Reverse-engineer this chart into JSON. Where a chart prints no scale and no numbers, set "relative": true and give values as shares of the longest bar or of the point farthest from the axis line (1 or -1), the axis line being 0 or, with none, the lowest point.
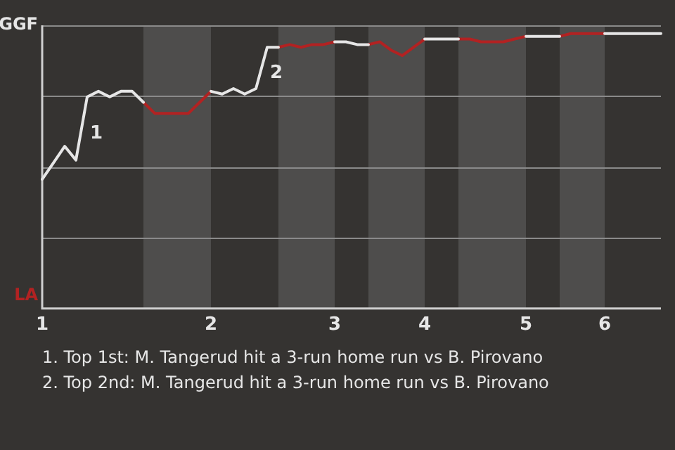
{
  "chart_data": {
    "type": "line",
    "relative": true,
    "categories": [
      "1",
      null,
      null,
      null,
      null,
      null,
      null,
      null,
      null,
      null,
      null,
      null,
      null,
      null,
      null,
      "2",
      null,
      null,
      null,
      null,
      null,
      null,
      null,
      null,
      null,
      null,
      "3",
      null,
      null,
      null,
      null,
      null,
      null,
      null,
      "4",
      null,
      null,
      null,
      null,
      null,
      null,
      null,
      null,
      "5",
      null,
      null,
      null,
      null,
      null,
      null,
      "6",
      null,
      null,
      null,
      null,
      null
    ],
    "grid": "y",
    "legend": false,
    "marker": "none",
    "line_style": "solid",
    "series": [
      {
        "color": "#e6e6e6",
        "values": [
          0.47,
          0.53,
          0.59,
          0.54,
          0.77,
          0.79,
          0.77,
          0.79,
          0.79,
          0.75,
          null,
          null,
          null,
          null,
          null,
          0.79,
          0.78,
          0.8,
          0.78,
          0.8,
          0.95,
          0.95,
          null,
          null,
          null,
          null,
          0.97,
          0.97,
          0.96,
          0.96,
          null,
          null,
          null,
          null,
          0.98,
          0.98,
          0.98,
          0.98,
          null,
          null,
          null,
          null,
          null,
          0.99,
          0.99,
          0.99,
          0.99,
          null,
          null,
          null,
          1,
          1,
          1,
          1,
          1,
          1
        ]
      },
      {
        "color": "#b22222",
        "values": [
          null,
          null,
          null,
          null,
          null,
          null,
          null,
          null,
          null,
          0.75,
          0.71,
          0.71,
          0.71,
          0.71,
          0.75,
          0.79,
          null,
          null,
          null,
          null,
          null,
          0.95,
          0.96,
          0.95,
          0.96,
          0.96,
          0.97,
          null,
          null,
          0.96,
          0.97,
          0.94,
          0.92,
          0.95,
          0.98,
          null,
          null,
          0.98,
          0.98,
          0.97,
          0.97,
          0.97,
          0.98,
          0.99,
          null,
          null,
          0.99,
          1,
          1,
          1,
          1,
          null,
          null,
          null,
          null,
          null
        ]
      }
    ],
    "annotations": [
      "GGF",
      "LA",
      "1",
      "2",
      "1. Top 1st: M. Tangerud hit a 3-run home run vs B. Pirovano",
      "2. Top 2nd: M. Tangerud hit a 3-run home run vs B. Pirovano"
    ]
  }
}
